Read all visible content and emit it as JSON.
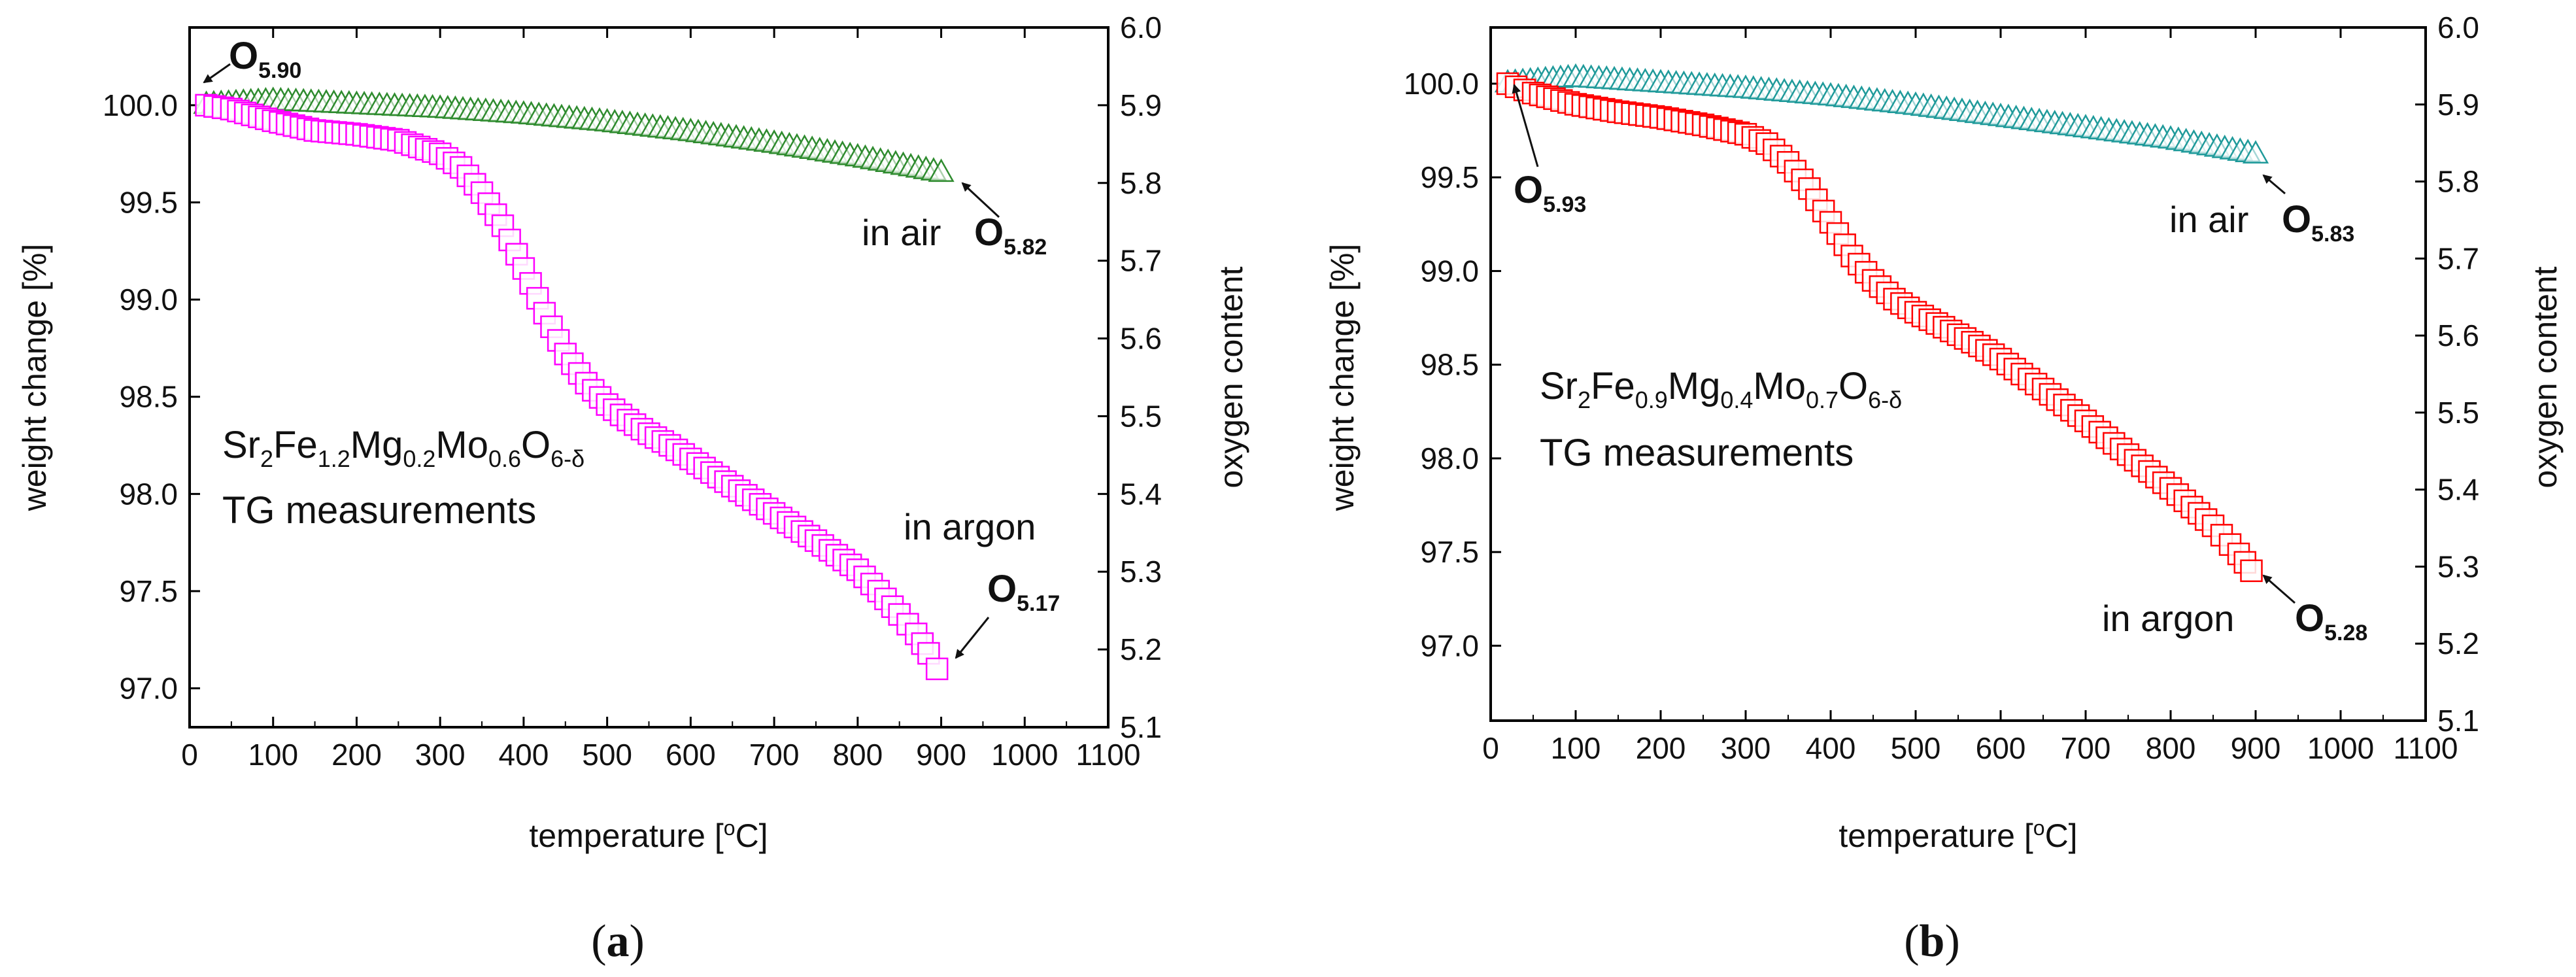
{
  "chart_data": [
    {
      "type": "scatter",
      "panel_label": {
        "open": "(",
        "letter": "a",
        "close": ")"
      },
      "title": "",
      "xlabel": "temperature [°C]",
      "xlabel_parts": {
        "pre": "temperature [",
        "deg": "o",
        "post": "C]"
      },
      "ylabel": "weight change [%]",
      "y2label": "oxygen content",
      "xlim": [
        0,
        1100
      ],
      "ylim": [
        96.8,
        100.4
      ],
      "y2lim": [
        5.1,
        6.0
      ],
      "xticks": [
        "0",
        "100",
        "200",
        "300",
        "400",
        "500",
        "600",
        "700",
        "800",
        "900",
        "1000",
        "1100"
      ],
      "xtick_values": [
        0,
        100,
        200,
        300,
        400,
        500,
        600,
        700,
        800,
        900,
        1000,
        1100
      ],
      "yticks": [
        "97.0",
        "97.5",
        "98.0",
        "98.5",
        "99.0",
        "99.5",
        "100.0"
      ],
      "ytick_values": [
        97.0,
        97.5,
        98.0,
        98.5,
        99.0,
        99.5,
        100.0
      ],
      "y2ticks": [
        "5.1",
        "5.2",
        "5.3",
        "5.4",
        "5.5",
        "5.6",
        "5.7",
        "5.8",
        "5.9",
        "6.0"
      ],
      "y2tick_values": [
        5.1,
        5.2,
        5.3,
        5.4,
        5.5,
        5.6,
        5.7,
        5.8,
        5.9,
        6.0
      ],
      "composition": [
        {
          "t": "Sr",
          "sub": false
        },
        {
          "t": "2",
          "sub": true
        },
        {
          "t": "Fe",
          "sub": false
        },
        {
          "t": "1.2",
          "sub": true
        },
        {
          "t": "Mg",
          "sub": false
        },
        {
          "t": "0.2",
          "sub": true
        },
        {
          "t": "Mo",
          "sub": false
        },
        {
          "t": "0.6",
          "sub": true
        },
        {
          "t": "O",
          "sub": false
        },
        {
          "t": "6-δ",
          "sub": true
        }
      ],
      "method": "TG measurements",
      "series": [
        {
          "name": "in air",
          "marker": "triangle",
          "color": "#2e8b2e",
          "x": [
            20,
            100,
            200,
            300,
            400,
            500,
            600,
            700,
            800,
            900
          ],
          "y": [
            100.0,
            100.02,
            100.0,
            99.98,
            99.95,
            99.91,
            99.86,
            99.8,
            99.73,
            99.65
          ]
        },
        {
          "name": "in argon",
          "marker": "square",
          "color": "#ff00ff",
          "x": [
            20,
            50,
            100,
            150,
            200,
            250,
            300,
            325,
            350,
            375,
            400,
            425,
            450,
            475,
            500,
            525,
            550,
            575,
            600,
            650,
            700,
            750,
            800,
            825,
            850,
            870,
            885,
            895
          ],
          "y": [
            100.0,
            99.98,
            99.92,
            99.87,
            99.85,
            99.82,
            99.75,
            99.68,
            99.55,
            99.38,
            99.16,
            98.93,
            98.72,
            98.57,
            98.46,
            98.38,
            98.31,
            98.25,
            98.18,
            98.04,
            97.9,
            97.76,
            97.61,
            97.5,
            97.38,
            97.28,
            97.18,
            97.1
          ]
        }
      ],
      "annotations": [
        {
          "text": "in air",
          "sub": "",
          "o": ""
        },
        {
          "text": "in argon",
          "sub": "",
          "o": ""
        },
        {
          "text": "",
          "o": "O",
          "sub": "5.90"
        },
        {
          "text": "",
          "o": "O",
          "sub": "5.82"
        },
        {
          "text": "",
          "o": "O",
          "sub": "5.17"
        }
      ]
    },
    {
      "type": "scatter",
      "panel_label": {
        "open": "(",
        "letter": "b",
        "close": ")"
      },
      "title": "",
      "xlabel": "temperature [°C]",
      "xlabel_parts": {
        "pre": "temperature [",
        "deg": "o",
        "post": "C]"
      },
      "ylabel": "weight change [%]",
      "y2label": "oxygen content",
      "xlim": [
        0,
        1100
      ],
      "ylim": [
        96.6,
        100.3
      ],
      "y2lim": [
        5.1,
        6.0
      ],
      "xticks": [
        "0",
        "100",
        "200",
        "300",
        "400",
        "500",
        "600",
        "700",
        "800",
        "900",
        "1000",
        "1100"
      ],
      "xtick_values": [
        0,
        100,
        200,
        300,
        400,
        500,
        600,
        700,
        800,
        900,
        1000,
        1100
      ],
      "yticks": [
        "97.0",
        "97.5",
        "98.0",
        "98.5",
        "99.0",
        "99.5",
        "100.0"
      ],
      "ytick_values": [
        97.0,
        97.5,
        98.0,
        98.5,
        99.0,
        99.5,
        100.0
      ],
      "y2ticks": [
        "5.1",
        "5.2",
        "5.3",
        "5.4",
        "5.5",
        "5.6",
        "5.7",
        "5.8",
        "5.9",
        "6.0"
      ],
      "y2tick_values": [
        5.1,
        5.2,
        5.3,
        5.4,
        5.5,
        5.6,
        5.7,
        5.8,
        5.9,
        6.0
      ],
      "composition": [
        {
          "t": "Sr",
          "sub": false
        },
        {
          "t": "2",
          "sub": true
        },
        {
          "t": "Fe",
          "sub": false
        },
        {
          "t": "0.9",
          "sub": true
        },
        {
          "t": "Mg",
          "sub": false
        },
        {
          "t": "0.4",
          "sub": true
        },
        {
          "t": "Mo",
          "sub": false
        },
        {
          "t": "0.7",
          "sub": true
        },
        {
          "t": "O",
          "sub": false
        },
        {
          "t": "6-δ",
          "sub": true
        }
      ],
      "method": "TG measurements",
      "series": [
        {
          "name": "in air",
          "marker": "triangle",
          "color": "#1f9a9a",
          "x": [
            20,
            100,
            200,
            300,
            400,
            500,
            600,
            700,
            800,
            900
          ],
          "y": [
            100.0,
            100.03,
            100.0,
            99.97,
            99.93,
            99.88,
            99.82,
            99.76,
            99.7,
            99.62
          ]
        },
        {
          "name": "in argon",
          "marker": "square",
          "color": "#ff0000",
          "x": [
            20,
            50,
            100,
            150,
            200,
            250,
            300,
            325,
            350,
            375,
            400,
            425,
            450,
            475,
            500,
            525,
            550,
            575,
            600,
            625,
            650,
            700,
            750,
            800,
            850,
            880,
            895
          ],
          "y": [
            100.0,
            99.95,
            99.89,
            99.85,
            99.82,
            99.78,
            99.73,
            99.68,
            99.58,
            99.44,
            99.26,
            99.08,
            98.95,
            98.85,
            98.78,
            98.72,
            98.66,
            98.6,
            98.53,
            98.45,
            98.37,
            98.2,
            98.02,
            97.84,
            97.64,
            97.49,
            97.4
          ]
        }
      ],
      "annotations": [
        {
          "text": "in air",
          "sub": "",
          "o": ""
        },
        {
          "text": "in argon",
          "sub": "",
          "o": ""
        },
        {
          "text": "",
          "o": "O",
          "sub": "5.93"
        },
        {
          "text": "",
          "o": "O",
          "sub": "5.83"
        },
        {
          "text": "",
          "o": "O",
          "sub": "5.28"
        }
      ]
    }
  ]
}
